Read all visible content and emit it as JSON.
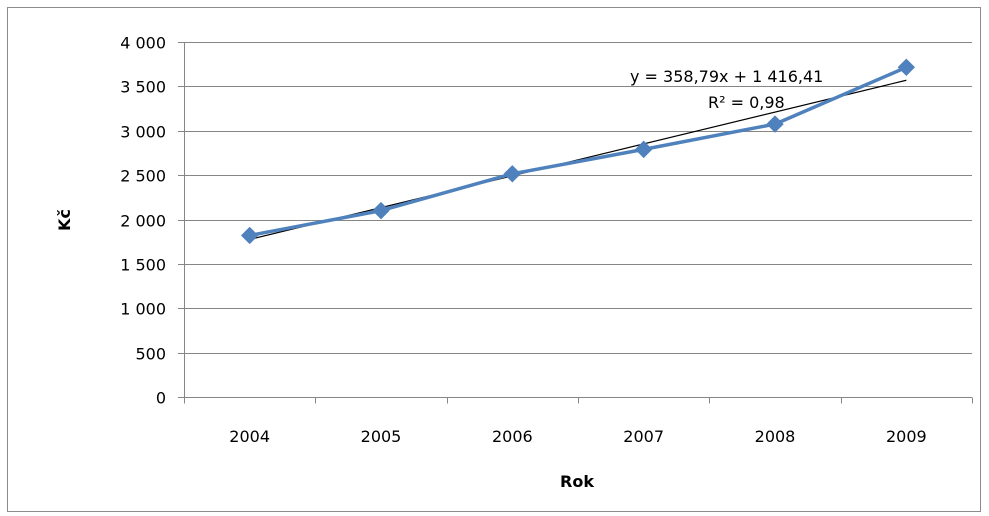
{
  "chart_data": {
    "type": "line",
    "title": "",
    "xlabel": "Rok",
    "ylabel": "Kč",
    "categories": [
      "2004",
      "2005",
      "2006",
      "2007",
      "2008",
      "2009"
    ],
    "series": [
      {
        "name": "",
        "color": "#4f81bd",
        "marker": "diamond",
        "values": [
          1820,
          2100,
          2515,
          2790,
          3075,
          3715
        ]
      }
    ],
    "trendline": {
      "type": "linear",
      "slope": 358.79,
      "intercept": 1416.41,
      "color": "#000000",
      "equation_label": "y = 358,79x + 1 416,41",
      "r2_label": "R² = 0,98"
    },
    "ylim": [
      0,
      4000
    ],
    "yticks": [
      0,
      500,
      1000,
      1500,
      2000,
      2500,
      3000,
      3500,
      4000
    ],
    "ytick_labels": [
      "0",
      "500",
      "1 000",
      "1 500",
      "2 000",
      "2 500",
      "3 000",
      "3 500",
      "4 000"
    ],
    "grid": true,
    "gridline_color": "#868686",
    "legend": "none"
  }
}
